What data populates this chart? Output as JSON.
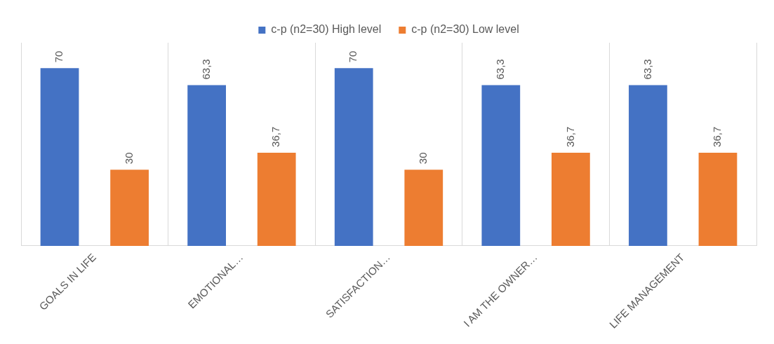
{
  "chart_data": {
    "type": "bar",
    "categories": [
      "GOALS IN LIFE",
      "EMOTIONAL…",
      "SATISFACTION…",
      "I AM THE OWNER…",
      "LIFE MANAGEMENT"
    ],
    "series": [
      {
        "name": "c-p (n2=30) High level",
        "color": "#4472c4",
        "values": [
          70,
          63.3,
          70,
          63.3,
          63.3
        ],
        "value_labels": [
          "70",
          "63,3",
          "70",
          "63,3",
          "63,3"
        ]
      },
      {
        "name": "c-p (n2=30) Low level",
        "color": "#ed7d31",
        "values": [
          30,
          36.7,
          30,
          36.7,
          36.7
        ],
        "value_labels": [
          "30",
          "36,7",
          "30",
          "36,7",
          "36,7"
        ]
      }
    ],
    "grid": "x",
    "legend": "top"
  }
}
